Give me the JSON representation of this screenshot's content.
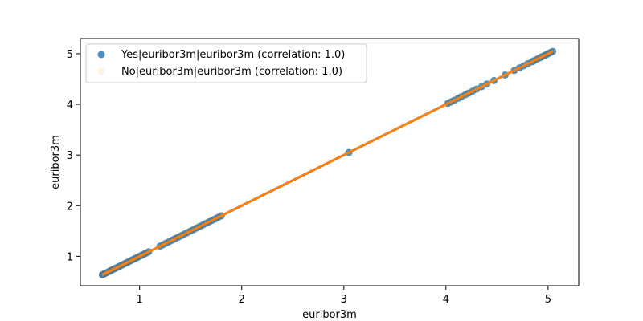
{
  "chart_data": {
    "type": "scatter",
    "xlabel": "euribor3m",
    "ylabel": "euribor3m",
    "xlim": [
      0.42,
      5.3
    ],
    "ylim": [
      0.42,
      5.3
    ],
    "xticks": [
      1,
      2,
      3,
      4,
      5
    ],
    "yticks": [
      1,
      2,
      3,
      4,
      5
    ],
    "grid": false,
    "legend_position": "top-left",
    "series": [
      {
        "name": "Yes|euribor3m|euribor3m (correlation: 1.0)",
        "color": "#1f77b4",
        "opacity": 0.8,
        "x": [
          0.635,
          0.65,
          0.66,
          0.68,
          0.7,
          0.715,
          0.73,
          0.75,
          0.77,
          0.79,
          0.81,
          0.83,
          0.85,
          0.87,
          0.89,
          0.91,
          0.93,
          0.95,
          0.97,
          0.99,
          1.01,
          1.03,
          1.05,
          1.07,
          1.09,
          1.2,
          1.23,
          1.26,
          1.29,
          1.32,
          1.35,
          1.38,
          1.41,
          1.44,
          1.47,
          1.5,
          1.53,
          1.56,
          1.59,
          1.62,
          1.65,
          1.68,
          1.71,
          1.74,
          1.77,
          1.8,
          3.05,
          4.02,
          4.05,
          4.08,
          4.12,
          4.15,
          4.19,
          4.22,
          4.26,
          4.3,
          4.35,
          4.4,
          4.47,
          4.58,
          4.67,
          4.72,
          4.76,
          4.8,
          4.84,
          4.86,
          4.89,
          4.92,
          4.94,
          4.96,
          4.98,
          5.0,
          5.02,
          5.045
        ],
        "y": [
          0.635,
          0.65,
          0.66,
          0.68,
          0.7,
          0.715,
          0.73,
          0.75,
          0.77,
          0.79,
          0.81,
          0.83,
          0.85,
          0.87,
          0.89,
          0.91,
          0.93,
          0.95,
          0.97,
          0.99,
          1.01,
          1.03,
          1.05,
          1.07,
          1.09,
          1.2,
          1.23,
          1.26,
          1.29,
          1.32,
          1.35,
          1.38,
          1.41,
          1.44,
          1.47,
          1.5,
          1.53,
          1.56,
          1.59,
          1.62,
          1.65,
          1.68,
          1.71,
          1.74,
          1.77,
          1.8,
          3.05,
          4.02,
          4.05,
          4.08,
          4.12,
          4.15,
          4.19,
          4.22,
          4.26,
          4.3,
          4.35,
          4.4,
          4.47,
          4.58,
          4.67,
          4.72,
          4.76,
          4.8,
          4.84,
          4.86,
          4.89,
          4.92,
          4.94,
          4.96,
          4.98,
          5.0,
          5.02,
          5.045
        ],
        "fit_line": {
          "x": [
            0.635,
            5.045
          ],
          "y": [
            0.635,
            5.045
          ]
        }
      },
      {
        "name": "No|euribor3m|euribor3m (correlation: 1.0)",
        "color": "#ff7f0e",
        "opacity": 0.1,
        "x": [
          0.64,
          0.66,
          0.68,
          0.7,
          0.72,
          0.74,
          0.76,
          0.78,
          0.8,
          0.82,
          0.84,
          0.86,
          0.88,
          0.9,
          0.92,
          0.94,
          0.96,
          0.98,
          1.0,
          1.02,
          1.04,
          1.06,
          1.08,
          1.2,
          1.22,
          1.25,
          1.28,
          1.31,
          1.34,
          1.37,
          1.4,
          1.43,
          1.46,
          1.49,
          1.52,
          1.55,
          1.58,
          1.61,
          1.64,
          1.67,
          1.7,
          1.73,
          1.76,
          1.79,
          1.81,
          4.02,
          4.06,
          4.1,
          4.14,
          4.18,
          4.22,
          4.25,
          4.3,
          4.36,
          4.42,
          4.58,
          4.66,
          4.75,
          4.79,
          4.83,
          4.86,
          4.88,
          4.91,
          4.93,
          4.95,
          4.97,
          4.99,
          5.01,
          5.04
        ],
        "y": [
          0.64,
          0.66,
          0.68,
          0.7,
          0.72,
          0.74,
          0.76,
          0.78,
          0.8,
          0.82,
          0.84,
          0.86,
          0.88,
          0.9,
          0.92,
          0.94,
          0.96,
          0.98,
          1.0,
          1.02,
          1.04,
          1.06,
          1.08,
          1.2,
          1.22,
          1.25,
          1.28,
          1.31,
          1.34,
          1.37,
          1.4,
          1.43,
          1.46,
          1.49,
          1.52,
          1.55,
          1.58,
          1.61,
          1.64,
          1.67,
          1.7,
          1.73,
          1.76,
          1.79,
          1.81,
          4.02,
          4.06,
          4.1,
          4.14,
          4.18,
          4.22,
          4.25,
          4.3,
          4.36,
          4.42,
          4.58,
          4.66,
          4.75,
          4.79,
          4.83,
          4.86,
          4.88,
          4.91,
          4.93,
          4.95,
          4.97,
          4.99,
          5.01,
          5.04
        ],
        "fit_line": {
          "x": [
            0.64,
            5.04
          ],
          "y": [
            0.64,
            5.04
          ]
        }
      }
    ]
  }
}
